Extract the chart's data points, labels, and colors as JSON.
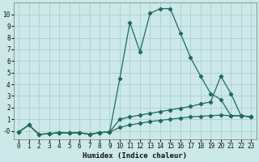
{
  "xlabel": "Humidex (Indice chaleur)",
  "background_color": "#cce8e8",
  "grid_color": "#aacfcf",
  "line_color": "#1e6b5e",
  "xlim": [
    -0.5,
    23.5
  ],
  "ylim": [
    -0.7,
    11.0
  ],
  "xticks": [
    0,
    1,
    2,
    3,
    4,
    5,
    6,
    7,
    8,
    9,
    10,
    11,
    12,
    13,
    14,
    15,
    16,
    17,
    18,
    19,
    20,
    21,
    22,
    23
  ],
  "ytick_vals": [
    0,
    1,
    2,
    3,
    4,
    5,
    6,
    7,
    8,
    9,
    10
  ],
  "ytick_labels": [
    "-0",
    "1",
    "2",
    "3",
    "4",
    "5",
    "6",
    "7",
    "8",
    "9",
    "10"
  ],
  "line1_x": [
    0,
    1,
    2,
    3,
    4,
    5,
    6,
    7,
    8,
    9,
    10,
    11,
    12,
    13,
    14,
    15,
    16,
    17,
    18,
    19,
    20,
    21,
    22,
    23
  ],
  "line1_y": [
    -0.1,
    0.5,
    -0.3,
    -0.25,
    -0.15,
    -0.2,
    -0.15,
    -0.3,
    -0.15,
    -0.1,
    4.5,
    9.3,
    6.8,
    10.1,
    10.5,
    10.5,
    8.4,
    6.3,
    4.7,
    3.2,
    2.7,
    1.3,
    1.3,
    1.2
  ],
  "line2_x": [
    0,
    1,
    2,
    3,
    4,
    5,
    6,
    7,
    8,
    9,
    10,
    11,
    12,
    13,
    14,
    15,
    16,
    17,
    18,
    19,
    20,
    21,
    22,
    23
  ],
  "line2_y": [
    -0.1,
    0.5,
    -0.3,
    -0.25,
    -0.15,
    -0.2,
    -0.15,
    -0.3,
    -0.15,
    -0.1,
    1.0,
    1.2,
    1.35,
    1.5,
    1.65,
    1.8,
    1.95,
    2.1,
    2.3,
    2.5,
    4.7,
    3.2,
    1.3,
    1.2
  ],
  "line3_x": [
    0,
    1,
    2,
    3,
    4,
    5,
    6,
    7,
    8,
    9,
    10,
    11,
    12,
    13,
    14,
    15,
    16,
    17,
    18,
    19,
    20,
    21,
    22,
    23
  ],
  "line3_y": [
    -0.1,
    0.5,
    -0.3,
    -0.25,
    -0.15,
    -0.2,
    -0.15,
    -0.3,
    -0.15,
    -0.1,
    0.3,
    0.5,
    0.65,
    0.8,
    0.9,
    1.0,
    1.1,
    1.2,
    1.25,
    1.3,
    1.35,
    1.3,
    1.3,
    1.2
  ]
}
